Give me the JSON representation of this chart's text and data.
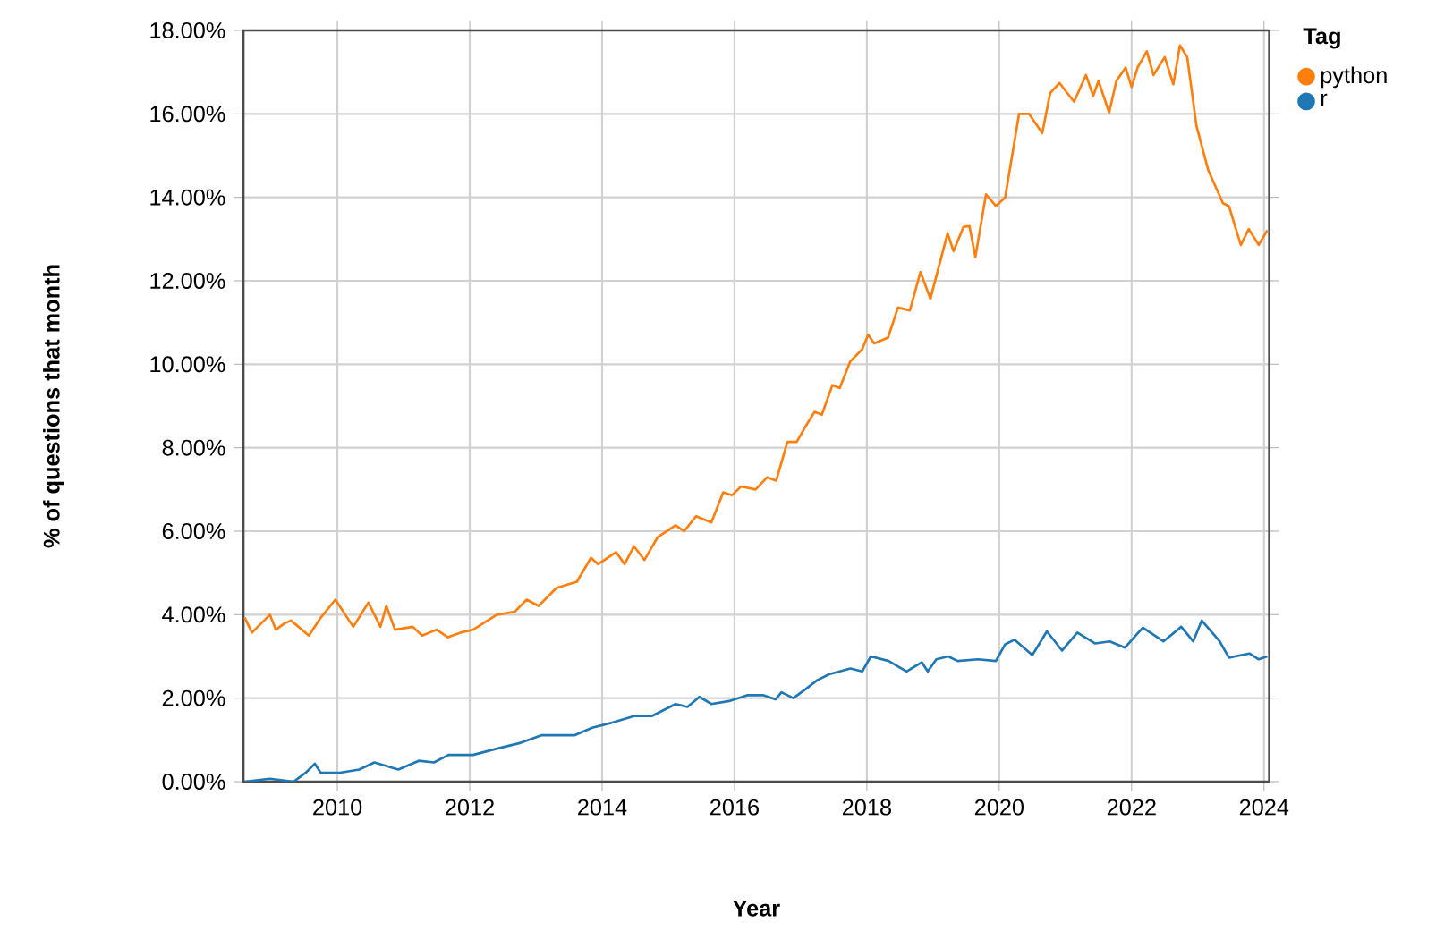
{
  "chart_data": {
    "type": "line",
    "xlabel": "Year",
    "ylabel": "% of questions that month",
    "legend_title": "Tag",
    "legend": "right",
    "grid": true,
    "xlim": [
      2008.58,
      2024.08
    ],
    "xticks": [
      2010,
      2012,
      2014,
      2016,
      2018,
      2020,
      2022,
      2024
    ],
    "ylim": [
      0,
      18
    ],
    "yticks": [
      {
        "value": 0,
        "label": "0.00%"
      },
      {
        "value": 2,
        "label": "2.00%"
      },
      {
        "value": 4,
        "label": "4.00%"
      },
      {
        "value": 6,
        "label": "6.00%"
      },
      {
        "value": 8,
        "label": "8.00%"
      },
      {
        "value": 10,
        "label": "10.00%"
      },
      {
        "value": 12,
        "label": "12.00%"
      },
      {
        "value": 14,
        "label": "14.00%"
      },
      {
        "value": 16,
        "label": "16.00%"
      },
      {
        "value": 18,
        "label": "18.00%"
      }
    ],
    "series": [
      {
        "name": "python",
        "color": "#ff7f0e",
        "x": [
          2008.6,
          2008.71,
          2008.98,
          2009.07,
          2009.2,
          2009.3,
          2009.57,
          2009.75,
          2009.97,
          2010.24,
          2010.47,
          2010.65,
          2010.74,
          2010.87,
          2011.14,
          2011.28,
          2011.5,
          2011.67,
          2011.86,
          2012.05,
          2012.41,
          2012.68,
          2012.86,
          2013.04,
          2013.31,
          2013.62,
          2013.83,
          2013.94,
          2014.21,
          2014.34,
          2014.48,
          2014.64,
          2014.84,
          2015.11,
          2015.24,
          2015.42,
          2015.65,
          2015.83,
          2015.96,
          2016.1,
          2016.32,
          2016.49,
          2016.63,
          2016.8,
          2016.94,
          2017.07,
          2017.21,
          2017.32,
          2017.48,
          2017.59,
          2017.75,
          2017.93,
          2018.02,
          2018.11,
          2018.32,
          2018.47,
          2018.65,
          2018.81,
          2018.96,
          2019.22,
          2019.31,
          2019.46,
          2019.55,
          2019.64,
          2019.8,
          2019.95,
          2020.09,
          2020.3,
          2020.45,
          2020.65,
          2020.77,
          2020.91,
          2021.13,
          2021.31,
          2021.42,
          2021.5,
          2021.66,
          2021.77,
          2021.91,
          2022.0,
          2022.09,
          2022.23,
          2022.33,
          2022.5,
          2022.63,
          2022.73,
          2022.84,
          2022.98,
          2023.16,
          2023.38,
          2023.47,
          2023.65,
          2023.77,
          2023.92,
          2024.05
        ],
        "values": [
          3.93,
          3.57,
          4.0,
          3.64,
          3.79,
          3.86,
          3.5,
          3.93,
          4.36,
          3.71,
          4.29,
          3.71,
          4.21,
          3.64,
          3.71,
          3.5,
          3.64,
          3.46,
          3.57,
          3.64,
          4.0,
          4.07,
          4.36,
          4.21,
          4.64,
          4.79,
          5.36,
          5.21,
          5.5,
          5.21,
          5.64,
          5.31,
          5.86,
          6.14,
          6.0,
          6.36,
          6.21,
          6.93,
          6.86,
          7.07,
          7.0,
          7.29,
          7.21,
          8.14,
          8.14,
          8.5,
          8.86,
          8.79,
          9.5,
          9.43,
          10.07,
          10.36,
          10.71,
          10.5,
          10.64,
          11.36,
          11.29,
          12.21,
          11.57,
          13.14,
          12.71,
          13.29,
          13.31,
          12.57,
          14.07,
          13.79,
          14.0,
          16.0,
          16.0,
          15.54,
          16.5,
          16.74,
          16.29,
          16.93,
          16.43,
          16.79,
          16.03,
          16.79,
          17.11,
          16.64,
          17.11,
          17.5,
          16.93,
          17.36,
          16.71,
          17.64,
          17.36,
          15.71,
          14.64,
          13.86,
          13.79,
          12.86,
          13.24,
          12.86,
          13.21
        ]
      },
      {
        "name": "r",
        "color": "#1f77b4",
        "x": [
          2008.6,
          2008.98,
          2009.34,
          2009.52,
          2009.66,
          2009.75,
          2010.02,
          2010.33,
          2010.56,
          2010.92,
          2011.23,
          2011.46,
          2011.68,
          2012.05,
          2012.41,
          2012.77,
          2013.08,
          2013.58,
          2013.85,
          2014.12,
          2014.48,
          2014.75,
          2015.11,
          2015.29,
          2015.47,
          2015.65,
          2015.92,
          2016.19,
          2016.44,
          2016.62,
          2016.71,
          2016.89,
          2017.07,
          2017.25,
          2017.43,
          2017.75,
          2017.93,
          2018.06,
          2018.33,
          2018.6,
          2018.83,
          2018.92,
          2019.05,
          2019.23,
          2019.37,
          2019.68,
          2019.95,
          2020.09,
          2020.23,
          2020.5,
          2020.72,
          2020.95,
          2021.18,
          2021.45,
          2021.67,
          2021.9,
          2022.17,
          2022.48,
          2022.75,
          2022.93,
          2023.06,
          2023.33,
          2023.47,
          2023.78,
          2023.92,
          2024.05
        ],
        "values": [
          0.0,
          0.07,
          0.0,
          0.21,
          0.43,
          0.21,
          0.21,
          0.29,
          0.46,
          0.29,
          0.5,
          0.46,
          0.64,
          0.64,
          0.79,
          0.93,
          1.11,
          1.11,
          1.29,
          1.4,
          1.57,
          1.57,
          1.86,
          1.79,
          2.03,
          1.86,
          1.93,
          2.07,
          2.07,
          1.97,
          2.14,
          2.0,
          2.21,
          2.43,
          2.57,
          2.71,
          2.64,
          3.0,
          2.89,
          2.64,
          2.86,
          2.64,
          2.93,
          3.0,
          2.89,
          2.93,
          2.89,
          3.29,
          3.4,
          3.03,
          3.6,
          3.14,
          3.57,
          3.31,
          3.36,
          3.21,
          3.69,
          3.36,
          3.71,
          3.36,
          3.86,
          3.36,
          2.97,
          3.07,
          2.93,
          3.0
        ]
      }
    ]
  }
}
